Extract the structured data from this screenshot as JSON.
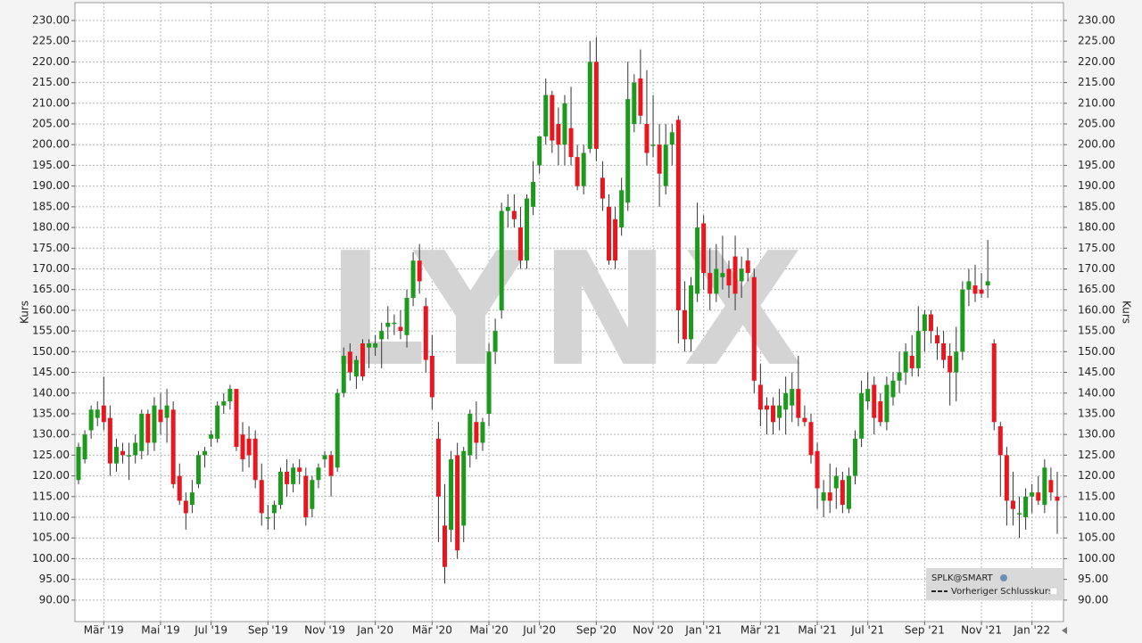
{
  "chart_data": {
    "type": "candlestick",
    "watermark": "LYNX",
    "legend": {
      "symbol": "SPLK@SMART",
      "line": "Vorheriger Schlusskurs"
    },
    "ylabel": "Kurs",
    "up_color": "#1c9a1c",
    "down_color": "#e8161e",
    "grid": true,
    "ylim": [
      84.8,
      234.3
    ],
    "yticks": [
      {
        "value": 90,
        "label": "90.00"
      },
      {
        "value": 95,
        "label": "95.00"
      },
      {
        "value": 100,
        "label": "100.00"
      },
      {
        "value": 105,
        "label": "105.00"
      },
      {
        "value": 110,
        "label": "110.00"
      },
      {
        "value": 115,
        "label": "115.00"
      },
      {
        "value": 120,
        "label": "120.00"
      },
      {
        "value": 125,
        "label": "125.00"
      },
      {
        "value": 130,
        "label": "130.00"
      },
      {
        "value": 135,
        "label": "135.00"
      },
      {
        "value": 140,
        "label": "140.00"
      },
      {
        "value": 145,
        "label": "145.00"
      },
      {
        "value": 150,
        "label": "150.00"
      },
      {
        "value": 155,
        "label": "155.00"
      },
      {
        "value": 160,
        "label": "160.00"
      },
      {
        "value": 165,
        "label": "165.00"
      },
      {
        "value": 170,
        "label": "170.00"
      },
      {
        "value": 175,
        "label": "175.00"
      },
      {
        "value": 180,
        "label": "180.00"
      },
      {
        "value": 185,
        "label": "185.00"
      },
      {
        "value": 190,
        "label": "190.00"
      },
      {
        "value": 195,
        "label": "195.00"
      },
      {
        "value": 200,
        "label": "200.00"
      },
      {
        "value": 205,
        "label": "205.00"
      },
      {
        "value": 210,
        "label": "210.00"
      },
      {
        "value": 215,
        "label": "215.00"
      },
      {
        "value": 220,
        "label": "220.00"
      },
      {
        "value": 225,
        "label": "225.00"
      },
      {
        "value": 230,
        "label": "230.00"
      }
    ],
    "categories": [
      null,
      null,
      null,
      null,
      "Mär '19",
      null,
      null,
      null,
      null,
      null,
      null,
      null,
      null,
      "Mai '19",
      null,
      null,
      null,
      null,
      null,
      null,
      null,
      "Jul '19",
      null,
      null,
      null,
      null,
      null,
      null,
      null,
      null,
      "Sep '19",
      null,
      null,
      null,
      null,
      null,
      null,
      null,
      null,
      "Nov '19",
      null,
      null,
      null,
      null,
      null,
      null,
      null,
      "Jan '20",
      null,
      null,
      null,
      null,
      null,
      null,
      null,
      null,
      "Mär '20",
      null,
      null,
      null,
      null,
      null,
      null,
      null,
      null,
      "Mai '20",
      null,
      null,
      null,
      null,
      null,
      null,
      null,
      "Jul '20",
      null,
      null,
      null,
      null,
      null,
      null,
      null,
      null,
      "Sep '20",
      null,
      null,
      null,
      null,
      null,
      null,
      null,
      null,
      "Nov '20",
      null,
      null,
      null,
      null,
      null,
      null,
      null,
      "Jan '21",
      null,
      null,
      null,
      null,
      null,
      null,
      null,
      null,
      "Mär '21",
      null,
      null,
      null,
      null,
      null,
      null,
      null,
      null,
      "Mai '21",
      null,
      null,
      null,
      null,
      null,
      null,
      null,
      "Jul '21",
      null,
      null,
      null,
      null,
      null,
      null,
      null,
      null,
      "Sep '21",
      null,
      null,
      null,
      null,
      null,
      null,
      null,
      null,
      "Nov '21",
      null,
      null,
      null,
      null,
      null,
      null,
      null,
      "Jan '22",
      null,
      null,
      null,
      null
    ],
    "open": [
      119,
      124,
      131,
      134,
      137,
      134,
      123,
      126,
      125,
      125,
      126,
      135,
      128,
      136,
      134,
      136,
      120,
      114,
      113,
      118,
      125,
      129,
      129,
      137,
      138,
      141,
      130,
      129,
      129,
      119,
      110,
      111,
      113,
      121,
      118,
      122,
      120,
      112,
      119,
      124,
      125,
      122,
      140,
      150,
      144,
      152,
      151,
      151,
      153,
      156,
      157,
      156,
      154,
      163,
      172,
      161,
      149,
      129,
      108,
      107,
      125,
      108,
      125,
      133,
      128,
      135,
      150,
      160,
      184,
      184,
      180,
      172,
      185,
      195,
      202,
      212,
      205,
      200,
      204,
      197,
      190,
      199,
      220,
      192,
      185,
      182,
      180,
      186,
      205,
      216,
      205,
      200,
      200,
      190,
      200,
      206,
      160,
      153,
      164,
      181,
      169,
      164,
      168,
      170,
      173,
      167,
      172,
      168,
      142,
      137,
      137,
      134,
      136,
      137,
      141,
      134,
      133,
      126,
      114,
      116,
      117,
      119,
      112,
      120,
      129,
      138,
      142,
      138,
      133,
      139,
      143,
      145,
      149,
      146,
      155,
      159,
      154,
      152,
      149,
      145,
      150,
      165,
      166,
      165,
      166,
      152,
      132,
      125,
      114,
      111,
      110,
      115,
      116,
      113,
      119,
      115
    ],
    "high": [
      128,
      131,
      137,
      138,
      144,
      137,
      129,
      128,
      128,
      130,
      136,
      136,
      139,
      140,
      141,
      138,
      123,
      116,
      119,
      126,
      127,
      131,
      138,
      140,
      142,
      141,
      133,
      132,
      131,
      123,
      113,
      114,
      122,
      124,
      123,
      124,
      122,
      120,
      123,
      126,
      126,
      141,
      151,
      152,
      149,
      153,
      153,
      154,
      157,
      161,
      159,
      160,
      165,
      174,
      176,
      163,
      154,
      133,
      118,
      126,
      128,
      127,
      136,
      138,
      134,
      152,
      158,
      186,
      188,
      188,
      185,
      188,
      196,
      202,
      216,
      213,
      209,
      212,
      214,
      200,
      200,
      225,
      226,
      196,
      188,
      185,
      192,
      220,
      217,
      223,
      218,
      212,
      205,
      205,
      205,
      207,
      167,
      168,
      186,
      183,
      175,
      176,
      178,
      172,
      178,
      173,
      175,
      170,
      147,
      139,
      139,
      141,
      144,
      145,
      149,
      137,
      135,
      128,
      119,
      123,
      122,
      121,
      122,
      131,
      143,
      145,
      144,
      140,
      144,
      145,
      150,
      152,
      154,
      161,
      160,
      160,
      156,
      155,
      152,
      156,
      167,
      170,
      171,
      169,
      177,
      153,
      133,
      127,
      121,
      115,
      117,
      118,
      120,
      124,
      122,
      121
    ],
    "low": [
      118,
      123,
      129,
      132,
      131,
      120,
      121,
      123,
      119,
      123,
      124,
      125,
      126,
      130,
      128,
      117,
      113,
      107,
      111,
      117,
      122,
      127,
      128,
      135,
      136,
      126,
      121,
      122,
      117,
      108,
      107,
      107,
      112,
      115,
      116,
      118,
      108,
      110,
      117,
      122,
      115,
      121,
      139,
      143,
      141,
      143,
      146,
      149,
      146,
      153,
      154,
      153,
      151,
      161,
      164,
      145,
      136,
      104,
      94,
      104,
      100,
      104,
      122,
      124,
      126,
      132,
      147,
      158,
      180,
      180,
      170,
      170,
      183,
      193,
      200,
      198,
      195,
      195,
      195,
      189,
      188,
      198,
      196,
      184,
      171,
      170,
      178,
      184,
      203,
      205,
      195,
      197,
      185,
      188,
      195,
      152,
      150,
      150,
      162,
      165,
      160,
      162,
      165,
      163,
      160,
      163,
      167,
      140,
      132,
      130,
      130,
      131,
      130,
      133,
      132,
      132,
      123,
      112,
      110,
      111,
      112,
      111,
      111,
      118,
      127,
      136,
      130,
      132,
      131,
      137,
      140,
      142,
      144,
      144,
      150,
      152,
      148,
      146,
      137,
      138,
      148,
      161,
      162,
      163,
      163,
      131,
      115,
      108,
      108,
      105,
      107,
      111,
      113,
      111,
      114,
      106
    ],
    "close": [
      127,
      130,
      136,
      136,
      133,
      123,
      127,
      125,
      125,
      128,
      135,
      128,
      137,
      133,
      137,
      118,
      114,
      111,
      116,
      125,
      126,
      130,
      137,
      138,
      141,
      127,
      124,
      125,
      119,
      111,
      110,
      113,
      121,
      118,
      122,
      121,
      110,
      119,
      122,
      125,
      120,
      140,
      149,
      145,
      148,
      144,
      152,
      152,
      155,
      157,
      157,
      155,
      163,
      172,
      167,
      148,
      139,
      115,
      98,
      124,
      102,
      126,
      135,
      128,
      133,
      150,
      155,
      184,
      185,
      182,
      172,
      187,
      191,
      202,
      212,
      201,
      200,
      210,
      197,
      190,
      198,
      220,
      199,
      187,
      172,
      172,
      189,
      211,
      215,
      207,
      198,
      200,
      193,
      200,
      203,
      160,
      153,
      166,
      180,
      169,
      164,
      170,
      169,
      166,
      164,
      170,
      169,
      143,
      136,
      136,
      133,
      137,
      140,
      141,
      134,
      133,
      125,
      117,
      116,
      114,
      120,
      113,
      120,
      129,
      140,
      141,
      134,
      133,
      142,
      143,
      145,
      150,
      146,
      155,
      159,
      155,
      152,
      148,
      145,
      150,
      165,
      167,
      164,
      164,
      167,
      133,
      125,
      114,
      112,
      111,
      115,
      116,
      114,
      122,
      116,
      114
    ]
  }
}
